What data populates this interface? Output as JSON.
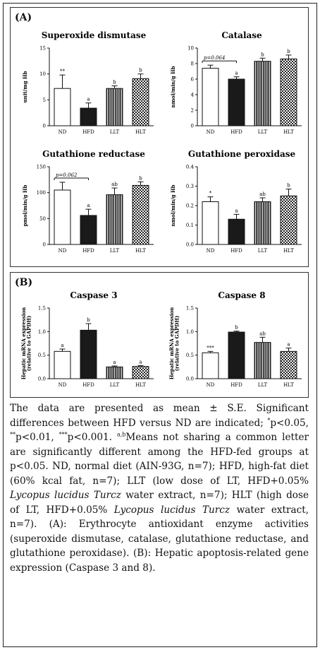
{
  "panels": {
    "a_label": "(A)",
    "b_label": "(B)"
  },
  "chart_data": [
    {
      "id": "sod",
      "type": "bar",
      "title": "Superoxide dismutase",
      "ylabel": "unit/mg Hb",
      "ylim": [
        0,
        15
      ],
      "yticks": [
        0,
        5,
        10,
        15
      ],
      "categories": [
        "ND",
        "HFD",
        "LLT",
        "HLT"
      ],
      "values": [
        7.2,
        3.4,
        7.2,
        9.1
      ],
      "errors": [
        2.6,
        1.0,
        0.5,
        0.9
      ],
      "labels": [
        "**",
        "a",
        "b",
        "b"
      ],
      "annotation": "",
      "patterns": [
        "white",
        "black",
        "vstripe",
        "check"
      ]
    },
    {
      "id": "cat",
      "type": "bar",
      "title": "Catalase",
      "ylabel": "nmol/min/g Hb",
      "ylim": [
        0,
        10
      ],
      "yticks": [
        0,
        2,
        4,
        6,
        8,
        10
      ],
      "categories": [
        "ND",
        "HFD",
        "LLT",
        "HLT"
      ],
      "values": [
        7.4,
        6.0,
        8.3,
        8.6
      ],
      "errors": [
        0.4,
        0.3,
        0.4,
        0.5
      ],
      "labels": [
        "",
        "a",
        "b",
        "b"
      ],
      "annotation": "p=0.064",
      "patterns": [
        "white",
        "black",
        "vstripe",
        "check"
      ]
    },
    {
      "id": "gr",
      "type": "bar",
      "title": "Gutathione reductase",
      "ylabel": "pmol/min/g Hb",
      "ylim": [
        0,
        150
      ],
      "yticks": [
        0,
        50,
        100,
        150
      ],
      "categories": [
        "ND",
        "HFD",
        "LLT",
        "HLT"
      ],
      "values": [
        105,
        56,
        96,
        114
      ],
      "errors": [
        15,
        12,
        13,
        7
      ],
      "labels": [
        "",
        "a",
        "ab",
        "b"
      ],
      "annotation": "p=0.062",
      "patterns": [
        "white",
        "black",
        "vstripe",
        "check"
      ]
    },
    {
      "id": "gpx",
      "type": "bar",
      "title": "Gutathione peroxidase",
      "ylabel": "nmol/min/g Hb",
      "ylim": [
        0,
        0.4
      ],
      "yticks": [
        0.0,
        0.1,
        0.2,
        0.3,
        0.4
      ],
      "categories": [
        "ND",
        "HFD",
        "LLT",
        "HLT"
      ],
      "values": [
        0.22,
        0.13,
        0.22,
        0.25
      ],
      "errors": [
        0.025,
        0.025,
        0.02,
        0.035
      ],
      "labels": [
        "*",
        "a",
        "ab",
        "b"
      ],
      "annotation": "",
      "patterns": [
        "white",
        "black",
        "vstripe",
        "check"
      ]
    },
    {
      "id": "casp3",
      "type": "bar",
      "title": "Caspase 3",
      "ylabel": "Hepatic mRNA expression (relative to GAPDH)",
      "ylim": [
        0,
        1.5
      ],
      "yticks": [
        0.0,
        0.5,
        1.0,
        1.5
      ],
      "categories": [
        "ND",
        "HFD",
        "LLT",
        "HLT"
      ],
      "values": [
        0.58,
        1.03,
        0.25,
        0.26
      ],
      "errors": [
        0.05,
        0.14,
        0.02,
        0.02
      ],
      "labels": [
        "a",
        "b",
        "a",
        "a"
      ],
      "annotation": "",
      "patterns": [
        "white",
        "black",
        "vstripe",
        "check"
      ]
    },
    {
      "id": "casp8",
      "type": "bar",
      "title": "Caspase 8",
      "ylabel": "Hepatic mRNA expression (relative to GAPDH)",
      "ylim": [
        0,
        1.5
      ],
      "yticks": [
        0.0,
        0.5,
        1.0,
        1.5
      ],
      "categories": [
        "ND",
        "HFD",
        "LLT",
        "HLT"
      ],
      "values": [
        0.55,
        0.99,
        0.77,
        0.58
      ],
      "errors": [
        0.03,
        0.02,
        0.11,
        0.07
      ],
      "labels": [
        "***",
        "b",
        "ab",
        "a"
      ],
      "annotation": "",
      "patterns": [
        "white",
        "black",
        "vstripe",
        "check"
      ]
    }
  ],
  "caption": {
    "t1": "The data are presented as mean ± S.E. Significant differences between HFD versus ND are indicated; ",
    "s1": "*",
    "t2": "p<0.05, ",
    "s2": "**",
    "t3": "p<0.01, ",
    "s3": "***",
    "t4": "p<0.001. ",
    "s4": "a,b",
    "t5": "Means not sharing a common letter are significantly different among the HFD-fed groups at p<0.05. ND, normal diet (AIN-93G, n=7); HFD, high-fat diet (60% kcal fat, n=7); LLT (low dose of LT, HFD+0.05% ",
    "i1": "Lycopus lucidus Turcz",
    "t6": " water extract, n=7); HLT (high dose of LT, HFD+0.05% ",
    "i2": "Lycopus lucidus Turcz",
    "t7": " water extract, n=7). (A): Erythrocyte antioxidant enzyme activities (superoxide dismutase, catalase, glutathione reductase, and glutathione peroxidase). (B): Hepatic apoptosis-related gene expression (Caspase 3 and 8)."
  }
}
